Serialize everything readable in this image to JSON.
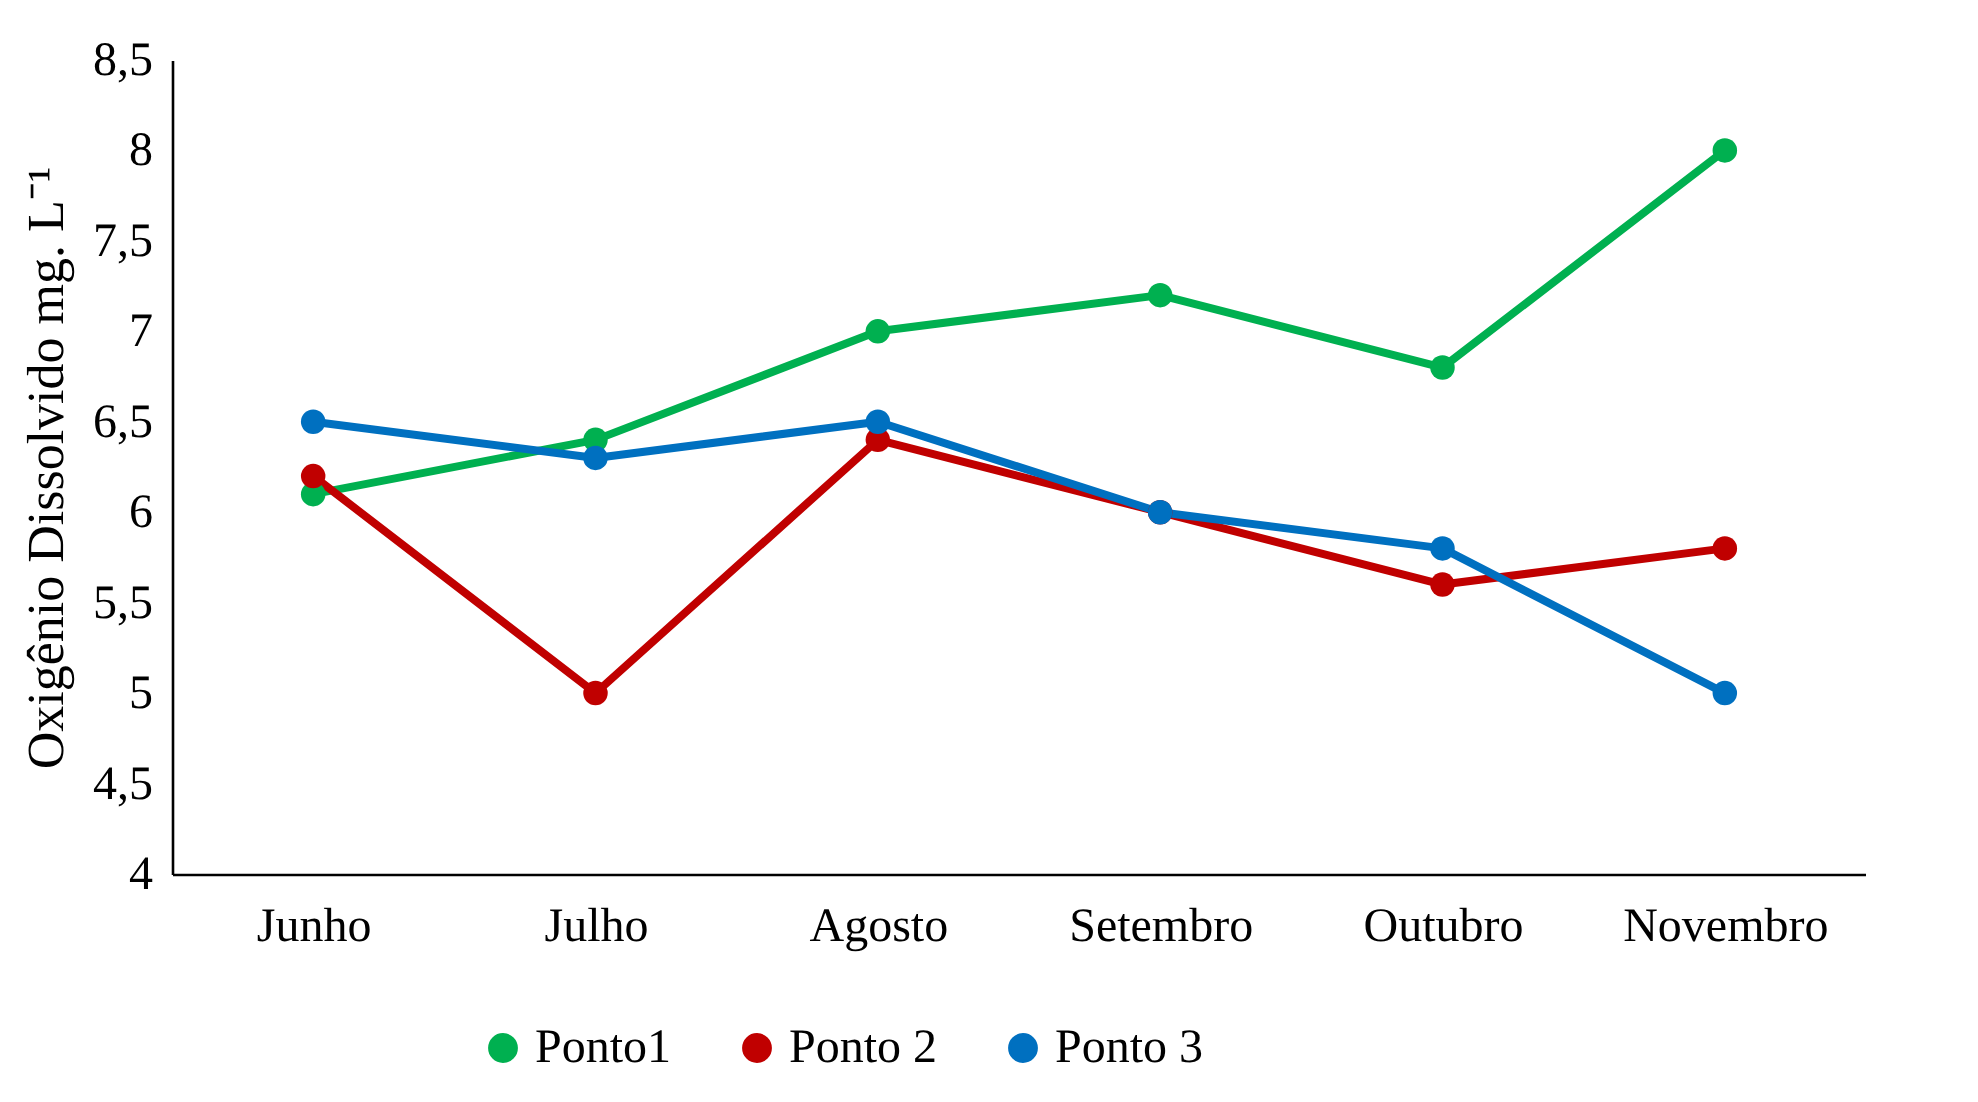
{
  "chart_data": {
    "type": "line",
    "ylabel": "Oxigênio Dissolvido mg. L⁻¹",
    "categories": [
      "Junho",
      "Julho",
      "Agosto",
      "Setembro",
      "Outubro",
      "Novembro"
    ],
    "series": [
      {
        "name": "Ponto1",
        "color": "#00b050",
        "values": [
          6.1,
          6.4,
          7.0,
          7.2,
          6.8,
          8.0
        ]
      },
      {
        "name": "Ponto 2",
        "color": "#c00000",
        "values": [
          6.2,
          5.0,
          6.4,
          6.0,
          5.6,
          5.8
        ]
      },
      {
        "name": "Ponto 3",
        "color": "#0070c0",
        "values": [
          6.5,
          6.3,
          6.5,
          6.0,
          5.8,
          5.0
        ]
      }
    ],
    "ylim": [
      4,
      8.5
    ],
    "yticks": [
      4,
      {
        "value": 4.5,
        "label": "4,5"
      },
      5,
      {
        "value": 5.5,
        "label": "5,5"
      },
      6,
      {
        "value": 6.5,
        "label": "6,5"
      },
      7,
      {
        "value": 7.5,
        "label": "7,5"
      },
      8,
      {
        "value": 8.5,
        "label": "8,5"
      }
    ],
    "grid": false,
    "legend": "bottom",
    "marker": "circle",
    "line_style": "solid"
  }
}
